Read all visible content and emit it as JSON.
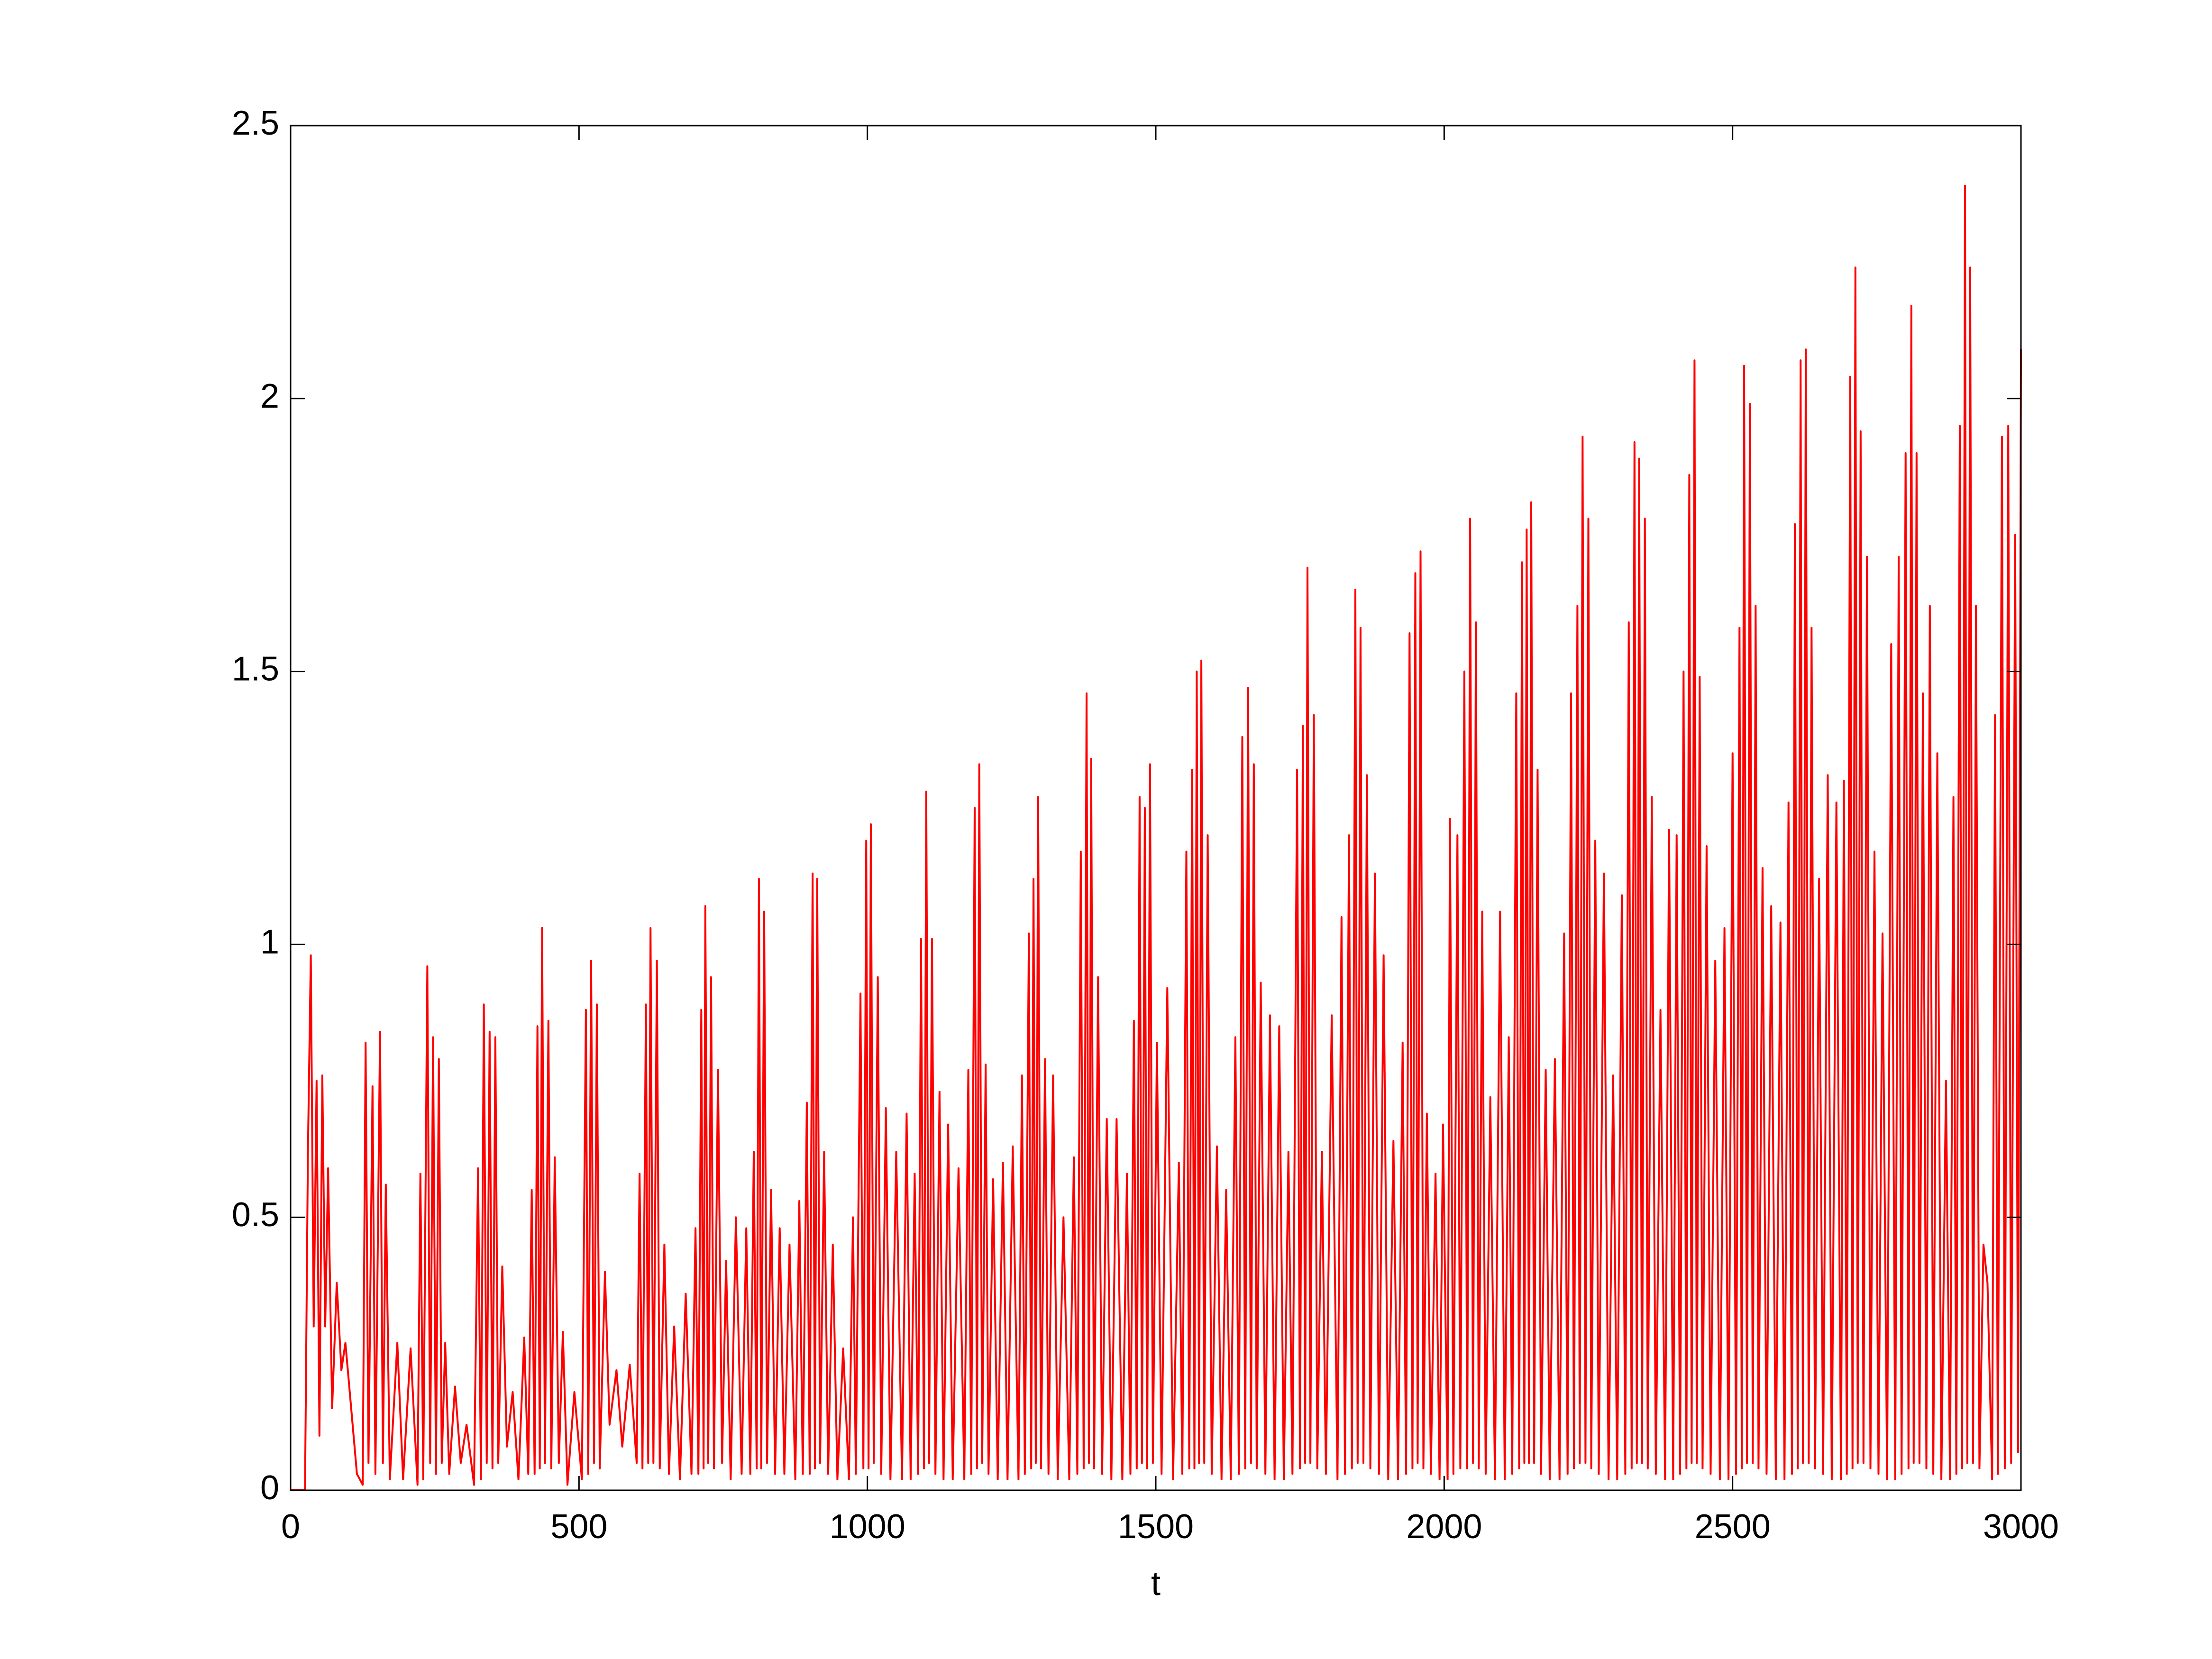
{
  "chart_data": {
    "type": "line",
    "xlabel": "t",
    "color": "#ff0000",
    "xlim": [
      0,
      3000
    ],
    "xticks": [
      0,
      500,
      1000,
      1500,
      2000,
      2500,
      3000
    ],
    "ylim": [
      0,
      2.5
    ],
    "yticks": [
      0,
      0.5,
      1,
      1.5,
      2,
      2.5
    ],
    "grid": false,
    "x": [
      0,
      25,
      30,
      35,
      40,
      45,
      50,
      55,
      60,
      65,
      72,
      80,
      88,
      95,
      105,
      115,
      125,
      130,
      135,
      142,
      147,
      155,
      160,
      165,
      172,
      185,
      195,
      208,
      220,
      225,
      230,
      237,
      242,
      247,
      252,
      257,
      262,
      268,
      275,
      285,
      295,
      305,
      318,
      325,
      330,
      335,
      340,
      345,
      350,
      355,
      360,
      367,
      375,
      385,
      395,
      405,
      412,
      418,
      423,
      428,
      432,
      436,
      441,
      447,
      452,
      458,
      465,
      472,
      480,
      492,
      505,
      512,
      516,
      521,
      526,
      531,
      536,
      545,
      553,
      565,
      575,
      588,
      600,
      605,
      610,
      616,
      620,
      624,
      629,
      635,
      640,
      648,
      656,
      665,
      675,
      685,
      695,
      702,
      707,
      712,
      716,
      719,
      724,
      729,
      734,
      741,
      748,
      755,
      763,
      772,
      782,
      790,
      797,
      803,
      808,
      812,
      816,
      821,
      826,
      833,
      840,
      848,
      856,
      865,
      875,
      882,
      888,
      895,
      900,
      905,
      909,
      913,
      918,
      925,
      932,
      940,
      948,
      958,
      968,
      975,
      980,
      988,
      993,
      998,
      1002,
      1006,
      1011,
      1018,
      1024,
      1032,
      1040,
      1050,
      1060,
      1068,
      1075,
      1082,
      1088,
      1093,
      1098,
      1102,
      1107,
      1112,
      1118,
      1125,
      1132,
      1140,
      1148,
      1158,
      1168,
      1175,
      1180,
      1186,
      1190,
      1194,
      1199,
      1205,
      1210,
      1218,
      1226,
      1235,
      1243,
      1252,
      1262,
      1268,
      1273,
      1280,
      1284,
      1288,
      1292,
      1296,
      1301,
      1308,
      1314,
      1322,
      1330,
      1340,
      1350,
      1358,
      1364,
      1370,
      1375,
      1380,
      1384,
      1388,
      1393,
      1400,
      1407,
      1415,
      1423,
      1432,
      1442,
      1450,
      1456,
      1462,
      1467,
      1472,
      1476,
      1481,
      1485,
      1490,
      1495,
      1502,
      1510,
      1520,
      1530,
      1540,
      1546,
      1553,
      1558,
      1563,
      1567,
      1571,
      1575,
      1579,
      1584,
      1590,
      1597,
      1606,
      1614,
      1622,
      1630,
      1638,
      1644,
      1650,
      1655,
      1660,
      1665,
      1670,
      1675,
      1682,
      1690,
      1698,
      1706,
      1714,
      1722,
      1730,
      1737,
      1745,
      1750,
      1755,
      1759,
      1763,
      1768,
      1774,
      1780,
      1788,
      1795,
      1805,
      1815,
      1822,
      1828,
      1835,
      1840,
      1846,
      1850,
      1855,
      1860,
      1866,
      1872,
      1880,
      1887,
      1895,
      1903,
      1912,
      1920,
      1928,
      1934,
      1940,
      1945,
      1950,
      1954,
      1959,
      1964,
      1970,
      1977,
      1985,
      1992,
      1998,
      2006,
      2010,
      2016,
      2023,
      2028,
      2035,
      2040,
      2045,
      2050,
      2055,
      2060,
      2066,
      2072,
      2080,
      2088,
      2097,
      2105,
      2112,
      2118,
      2125,
      2130,
      2135,
      2139,
      2143,
      2147,
      2151,
      2156,
      2162,
      2168,
      2176,
      2183,
      2192,
      2200,
      2208,
      2214,
      2220,
      2225,
      2231,
      2235,
      2240,
      2245,
      2250,
      2255,
      2262,
      2268,
      2277,
      2285,
      2293,
      2300,
      2308,
      2314,
      2320,
      2325,
      2330,
      2334,
      2338,
      2343,
      2348,
      2353,
      2360,
      2367,
      2375,
      2383,
      2390,
      2397,
      2403,
      2409,
      2415,
      2420,
      2425,
      2429,
      2434,
      2438,
      2443,
      2448,
      2455,
      2462,
      2470,
      2478,
      2486,
      2493,
      2500,
      2506,
      2512,
      2516,
      2520,
      2525,
      2530,
      2535,
      2540,
      2545,
      2552,
      2559,
      2567,
      2575,
      2583,
      2590,
      2597,
      2603,
      2608,
      2613,
      2618,
      2622,
      2627,
      2632,
      2637,
      2643,
      2650,
      2657,
      2665,
      2672,
      2680,
      2688,
      2693,
      2698,
      2704,
      2708,
      2713,
      2717,
      2722,
      2727,
      2733,
      2739,
      2746,
      2753,
      2760,
      2768,
      2775,
      2782,
      2788,
      2793,
      2800,
      2805,
      2810,
      2814,
      2819,
      2824,
      2830,
      2836,
      2842,
      2848,
      2855,
      2862,
      2870,
      2877,
      2883,
      2888,
      2894,
      2898,
      2903,
      2907,
      2912,
      2917,
      2922,
      2928,
      2935,
      2942,
      2950,
      2955,
      2960,
      2967,
      2972,
      2978,
      2983,
      2990,
      2995,
      3000
    ],
    "values": [
      0,
      0,
      0.62,
      0.98,
      0.3,
      0.75,
      0.1,
      0.76,
      0.3,
      0.59,
      0.15,
      0.38,
      0.22,
      0.27,
      0.15,
      0.03,
      0.01,
      0.82,
      0.05,
      0.74,
      0.03,
      0.84,
      0.05,
      0.56,
      0.02,
      0.27,
      0.02,
      0.26,
      0.01,
      0.58,
      0.02,
      0.96,
      0.05,
      0.83,
      0.03,
      0.79,
      0.05,
      0.27,
      0.03,
      0.19,
      0.05,
      0.12,
      0.01,
      0.59,
      0.02,
      0.89,
      0.05,
      0.84,
      0.04,
      0.83,
      0.05,
      0.41,
      0.08,
      0.18,
      0.02,
      0.28,
      0.03,
      0.55,
      0.03,
      0.85,
      0.04,
      1.03,
      0.05,
      0.86,
      0.04,
      0.61,
      0.05,
      0.29,
      0.01,
      0.18,
      0.02,
      0.88,
      0.03,
      0.97,
      0.05,
      0.89,
      0.04,
      0.4,
      0.12,
      0.22,
      0.08,
      0.23,
      0.05,
      0.58,
      0.04,
      0.89,
      0.05,
      1.03,
      0.05,
      0.97,
      0.04,
      0.45,
      0.03,
      0.3,
      0.02,
      0.36,
      0.03,
      0.48,
      0.03,
      0.88,
      0.04,
      1.07,
      0.05,
      0.94,
      0.04,
      0.77,
      0.05,
      0.42,
      0.02,
      0.5,
      0.03,
      0.48,
      0.03,
      0.62,
      0.04,
      1.12,
      0.04,
      1.06,
      0.05,
      0.55,
      0.03,
      0.48,
      0.03,
      0.45,
      0.02,
      0.53,
      0.03,
      0.71,
      0.03,
      1.13,
      0.04,
      1.12,
      0.05,
      0.62,
      0.03,
      0.45,
      0.02,
      0.26,
      0.02,
      0.5,
      0.03,
      0.91,
      0.04,
      1.19,
      0.04,
      1.22,
      0.05,
      0.94,
      0.03,
      0.7,
      0.02,
      0.62,
      0.02,
      0.69,
      0.02,
      0.58,
      0.03,
      1.01,
      0.04,
      1.28,
      0.05,
      1.01,
      0.03,
      0.73,
      0.02,
      0.67,
      0.02,
      0.59,
      0.02,
      0.77,
      0.03,
      1.25,
      0.04,
      1.33,
      0.05,
      0.78,
      0.03,
      0.57,
      0.02,
      0.6,
      0.02,
      0.63,
      0.02,
      0.76,
      0.03,
      1.02,
      0.04,
      1.12,
      0.05,
      1.27,
      0.04,
      0.79,
      0.03,
      0.76,
      0.02,
      0.5,
      0.02,
      0.61,
      0.03,
      1.17,
      0.04,
      1.46,
      0.05,
      1.34,
      0.04,
      0.94,
      0.03,
      0.68,
      0.02,
      0.68,
      0.02,
      0.58,
      0.03,
      0.86,
      0.04,
      1.27,
      0.05,
      1.25,
      0.04,
      1.33,
      0.05,
      0.82,
      0.03,
      0.92,
      0.02,
      0.6,
      0.03,
      1.17,
      0.04,
      1.32,
      0.04,
      1.5,
      0.05,
      1.52,
      0.05,
      1.2,
      0.03,
      0.63,
      0.02,
      0.55,
      0.02,
      0.83,
      0.03,
      1.38,
      0.04,
      1.47,
      0.05,
      1.33,
      0.04,
      0.93,
      0.03,
      0.87,
      0.02,
      0.85,
      0.02,
      0.62,
      0.03,
      1.32,
      0.04,
      1.4,
      0.05,
      1.69,
      0.05,
      1.42,
      0.04,
      0.62,
      0.03,
      0.87,
      0.02,
      1.05,
      0.03,
      1.2,
      0.04,
      1.65,
      0.05,
      1.58,
      0.05,
      1.31,
      0.04,
      1.13,
      0.03,
      0.98,
      0.02,
      0.64,
      0.02,
      0.82,
      0.03,
      1.57,
      0.04,
      1.68,
      0.05,
      1.72,
      0.04,
      0.69,
      0.03,
      0.58,
      0.02,
      0.67,
      0.02,
      1.23,
      0.03,
      1.2,
      0.04,
      1.5,
      0.04,
      1.78,
      0.05,
      1.59,
      0.04,
      1.06,
      0.03,
      0.72,
      0.02,
      1.06,
      0.02,
      0.83,
      0.03,
      1.46,
      0.04,
      1.7,
      0.05,
      1.76,
      0.05,
      1.81,
      0.05,
      1.32,
      0.03,
      0.77,
      0.02,
      0.79,
      0.02,
      1.02,
      0.03,
      1.46,
      0.04,
      1.62,
      0.05,
      1.93,
      0.05,
      1.78,
      0.04,
      1.19,
      0.03,
      1.13,
      0.02,
      0.76,
      0.02,
      1.09,
      0.03,
      1.59,
      0.04,
      1.92,
      0.05,
      1.89,
      0.05,
      1.78,
      0.04,
      1.27,
      0.03,
      0.88,
      0.02,
      1.21,
      0.02,
      1.2,
      0.03,
      1.5,
      0.04,
      1.86,
      0.05,
      2.07,
      0.05,
      1.49,
      0.04,
      1.18,
      0.03,
      0.97,
      0.02,
      1.03,
      0.02,
      1.35,
      0.03,
      1.58,
      0.04,
      2.06,
      0.05,
      1.99,
      0.05,
      1.62,
      0.04,
      1.14,
      0.03,
      1.07,
      0.02,
      1.04,
      0.02,
      1.26,
      0.03,
      1.77,
      0.04,
      2.07,
      0.05,
      2.09,
      0.05,
      1.58,
      0.04,
      1.12,
      0.03,
      1.31,
      0.02,
      1.26,
      0.02,
      1.3,
      0.03,
      2.04,
      0.04,
      2.24,
      0.05,
      1.94,
      0.05,
      1.71,
      0.04,
      1.17,
      0.03,
      1.02,
      0.02,
      1.55,
      0.02,
      1.71,
      0.03,
      1.9,
      0.04,
      2.17,
      0.05,
      1.9,
      0.05,
      1.46,
      0.04,
      1.62,
      0.03,
      1.35,
      0.02,
      0.75,
      0.02,
      1.27,
      0.03,
      1.95,
      0.04,
      2.39,
      0.05,
      2.24,
      0.05,
      1.62,
      0.04,
      0.45,
      0.38,
      0.02,
      1.42,
      0.03,
      1.93,
      0.04,
      1.95,
      0.05,
      1.75,
      0.07,
      2.09
    ]
  }
}
